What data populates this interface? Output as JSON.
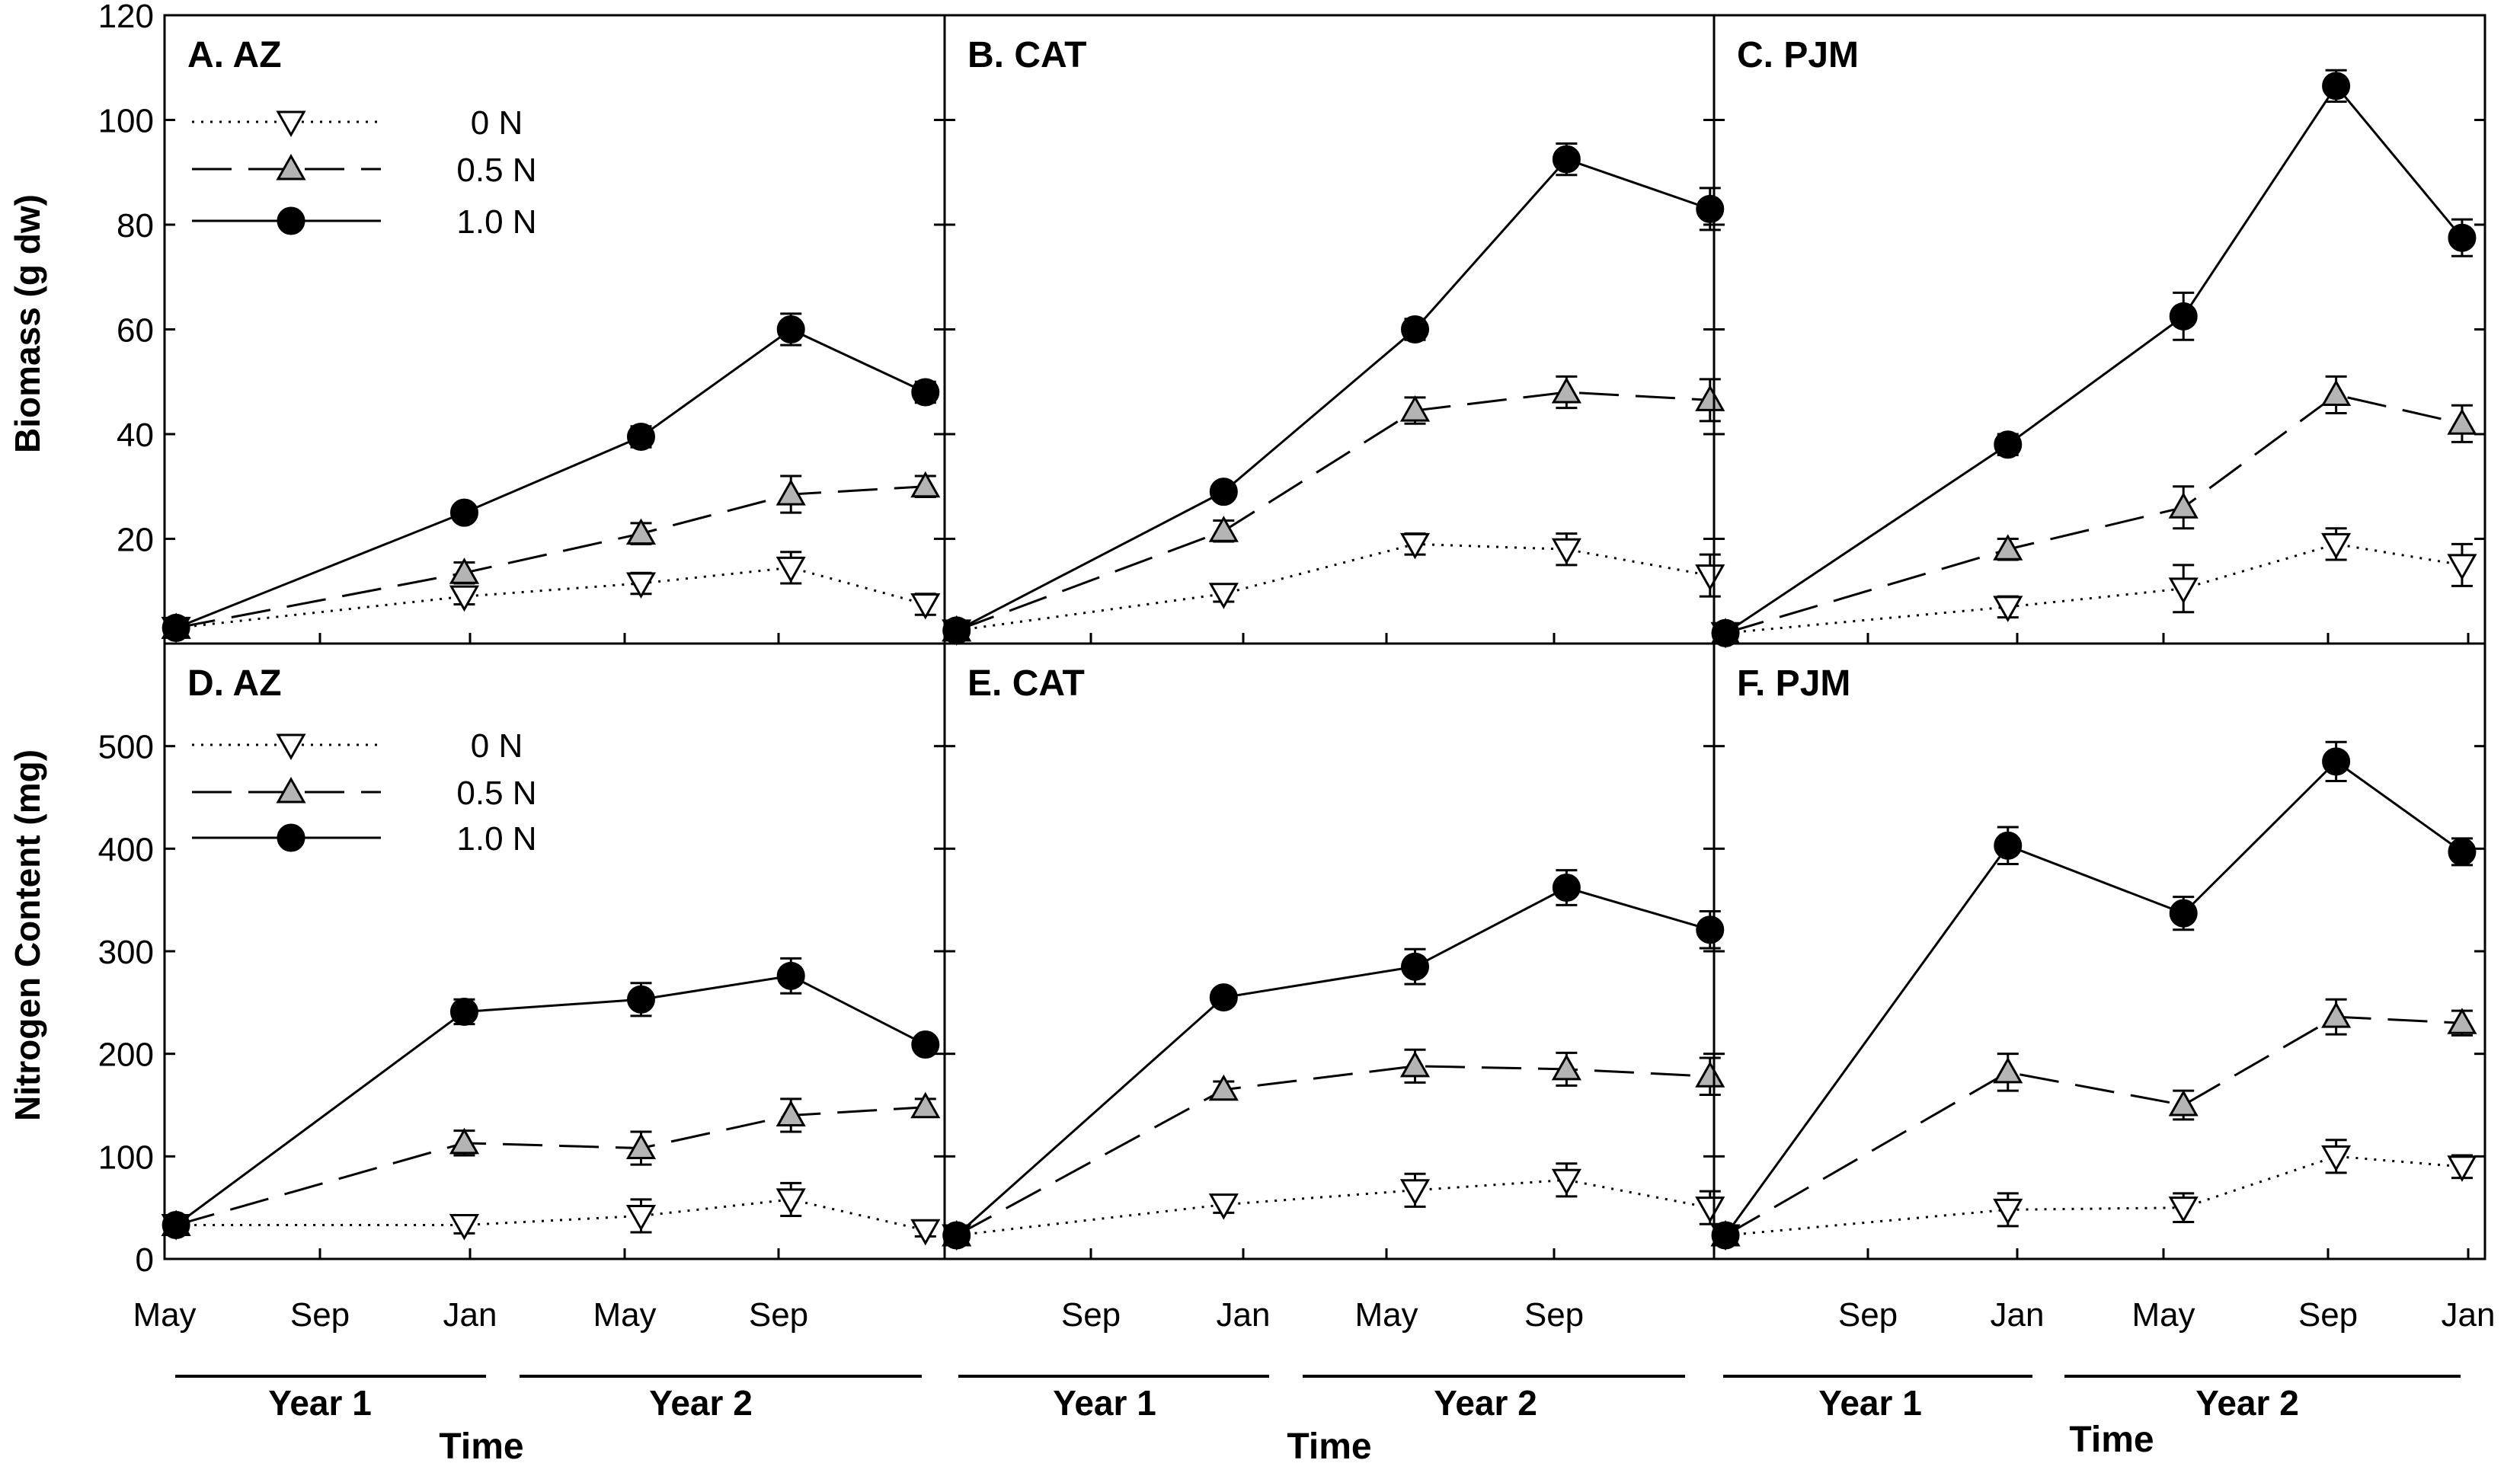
{
  "figure": {
    "y_label_top": "Biomass (g dw)",
    "y_label_bottom": "Nitrogen Content (mg)",
    "x_title": "Time",
    "year1": "Year 1",
    "year2": "Year 2"
  },
  "legend": [
    {
      "name": "0 N",
      "style": "dotted",
      "marker": "triangle-down",
      "fill": "#ffffff"
    },
    {
      "name": "0.5 N",
      "style": "dashed",
      "marker": "triangle-up",
      "fill": "#b4b4b4"
    },
    {
      "name": "1.0 N",
      "style": "solid",
      "marker": "circle",
      "fill": "#000000"
    }
  ],
  "chart_data": [
    {
      "type": "line",
      "title": "A. AZ",
      "ylabel": "Biomass (g dw)",
      "xlabel": "Time",
      "ylim": [
        0,
        120
      ],
      "yticks": [
        20,
        40,
        60,
        80,
        100,
        120
      ],
      "xticks": [
        "May",
        "Sep",
        "Jan",
        "May",
        "Sep"
      ],
      "xlim_months": [
        0,
        20.3
      ],
      "series": [
        {
          "name": "0 N",
          "x": [
            0.3,
            7.8,
            12.4,
            16.3,
            19.8
          ],
          "y": [
            3,
            9,
            11.5,
            14.5,
            7.5
          ],
          "err": [
            1,
            1.5,
            2,
            3,
            2
          ]
        },
        {
          "name": "0.5 N",
          "x": [
            0.3,
            7.8,
            12.4,
            16.3,
            19.8
          ],
          "y": [
            3,
            13.5,
            21,
            28.5,
            30
          ],
          "err": [
            1,
            2,
            2,
            3.5,
            2
          ]
        },
        {
          "name": "1.0 N",
          "x": [
            0.3,
            7.8,
            12.4,
            16.3,
            19.8
          ],
          "y": [
            3,
            25,
            39.5,
            60,
            48
          ],
          "err": [
            1,
            1.5,
            2,
            3,
            2
          ]
        }
      ]
    },
    {
      "type": "line",
      "title": "B. CAT",
      "ylabel": "Biomass (g dw)",
      "xlabel": "Time",
      "ylim": [
        0,
        120
      ],
      "yticks": [
        20,
        40,
        60,
        80,
        100,
        120
      ],
      "xticks": [
        "Sep",
        "Jan",
        "May",
        "Sep"
      ],
      "xlim_months": [
        0,
        19.3
      ],
      "series": [
        {
          "name": "0 N",
          "x": [
            0.3,
            7.0,
            11.8,
            15.6,
            19.2
          ],
          "y": [
            2.5,
            9.5,
            19,
            18,
            13
          ],
          "err": [
            1,
            1.5,
            2,
            3,
            4
          ]
        },
        {
          "name": "0.5 N",
          "x": [
            0.3,
            7.0,
            11.8,
            15.6,
            19.2
          ],
          "y": [
            2.5,
            21.5,
            44.5,
            48,
            46.5
          ],
          "err": [
            1,
            2,
            2.5,
            3,
            4
          ]
        },
        {
          "name": "1.0 N",
          "x": [
            0.3,
            7.0,
            11.8,
            15.6,
            19.2
          ],
          "y": [
            2.5,
            29,
            60,
            92.5,
            83
          ],
          "err": [
            1,
            1.5,
            2,
            3,
            4
          ]
        }
      ]
    },
    {
      "type": "line",
      "title": "C. PJM",
      "ylabel": "Biomass (g dw)",
      "xlabel": "Time",
      "ylim": [
        0,
        120
      ],
      "yticks": [
        20,
        40,
        60,
        80,
        100,
        120
      ],
      "xticks": [
        "Sep",
        "Jan",
        "May",
        "Sep",
        "Jan"
      ],
      "xlim_months": [
        0,
        20.2
      ],
      "series": [
        {
          "name": "0 N",
          "x": [
            0.3,
            7.7,
            12.3,
            16.3,
            19.6
          ],
          "y": [
            2,
            7,
            10.5,
            19,
            15
          ],
          "err": [
            1,
            2,
            4.5,
            3,
            4
          ]
        },
        {
          "name": "0.5 N",
          "x": [
            0.3,
            7.7,
            12.3,
            16.3,
            19.6
          ],
          "y": [
            2,
            18,
            26,
            47.5,
            42
          ],
          "err": [
            1,
            2,
            4,
            3.5,
            3.5
          ]
        },
        {
          "name": "1.0 N",
          "x": [
            0.3,
            7.7,
            12.3,
            16.3,
            19.6
          ],
          "y": [
            2,
            38,
            62.5,
            106.5,
            77.5
          ],
          "err": [
            1,
            2,
            4.5,
            3,
            3.5
          ]
        }
      ]
    },
    {
      "type": "line",
      "title": "D. AZ",
      "ylabel": "Nitrogen Content (mg)",
      "xlabel": "Time",
      "ylim": [
        0,
        600
      ],
      "yticks": [
        0,
        100,
        200,
        300,
        400,
        500
      ],
      "xticks": [
        "May",
        "Sep",
        "Jan",
        "May",
        "Sep"
      ],
      "xlim_months": [
        0,
        20.3
      ],
      "series": [
        {
          "name": "0 N",
          "x": [
            0.3,
            7.8,
            12.4,
            16.3,
            19.8
          ],
          "y": [
            33,
            33,
            42,
            58,
            28
          ],
          "err": [
            5,
            8,
            16,
            16,
            6
          ]
        },
        {
          "name": "0.5 N",
          "x": [
            0.3,
            7.8,
            12.4,
            16.3,
            19.8
          ],
          "y": [
            33,
            113,
            108,
            140,
            148
          ],
          "err": [
            5,
            12,
            16,
            16,
            8
          ]
        },
        {
          "name": "1.0 N",
          "x": [
            0.3,
            7.8,
            12.4,
            16.3,
            19.8
          ],
          "y": [
            33,
            241,
            253,
            276,
            209
          ],
          "err": [
            5,
            12,
            16,
            17,
            8
          ]
        }
      ]
    },
    {
      "type": "line",
      "title": "E. CAT",
      "ylabel": "Nitrogen Content (mg)",
      "xlabel": "Time",
      "ylim": [
        0,
        600
      ],
      "yticks": [
        0,
        100,
        200,
        300,
        400,
        500
      ],
      "xticks": [
        "Sep",
        "Jan",
        "May",
        "Sep"
      ],
      "xlim_months": [
        0,
        19.3
      ],
      "series": [
        {
          "name": "0 N",
          "x": [
            0.3,
            7.0,
            11.8,
            15.6,
            19.2
          ],
          "y": [
            23,
            53,
            67,
            77,
            50
          ],
          "err": [
            4,
            8,
            16,
            16,
            16
          ]
        },
        {
          "name": "0.5 N",
          "x": [
            0.3,
            7.0,
            11.8,
            15.6,
            19.2
          ],
          "y": [
            23,
            165,
            188,
            185,
            178
          ],
          "err": [
            4,
            8,
            16,
            16,
            18
          ]
        },
        {
          "name": "1.0 N",
          "x": [
            0.3,
            7.0,
            11.8,
            15.6,
            19.2
          ],
          "y": [
            23,
            255,
            285,
            362,
            321
          ],
          "err": [
            4,
            8,
            17,
            17,
            18
          ]
        }
      ]
    },
    {
      "type": "line",
      "title": "F. PJM",
      "ylabel": "Nitrogen Content (mg)",
      "xlabel": "Time",
      "ylim": [
        0,
        600
      ],
      "yticks": [
        0,
        100,
        200,
        300,
        400,
        500
      ],
      "xticks": [
        "Sep",
        "Jan",
        "May",
        "Sep",
        "Jan"
      ],
      "xlim_months": [
        0,
        20.2
      ],
      "series": [
        {
          "name": "0 N",
          "x": [
            0.3,
            7.7,
            12.3,
            16.3,
            19.6
          ],
          "y": [
            23,
            48,
            50,
            100,
            90
          ],
          "err": [
            4,
            16,
            14,
            16,
            11
          ]
        },
        {
          "name": "0.5 N",
          "x": [
            0.3,
            7.7,
            12.3,
            16.3,
            19.6
          ],
          "y": [
            23,
            182,
            150,
            236,
            230
          ],
          "err": [
            4,
            18,
            14,
            17,
            12
          ]
        },
        {
          "name": "1.0 N",
          "x": [
            0.3,
            7.7,
            12.3,
            16.3,
            19.6
          ],
          "y": [
            23,
            403,
            337,
            485,
            397
          ],
          "err": [
            4,
            18,
            16,
            19,
            13
          ]
        }
      ]
    }
  ]
}
